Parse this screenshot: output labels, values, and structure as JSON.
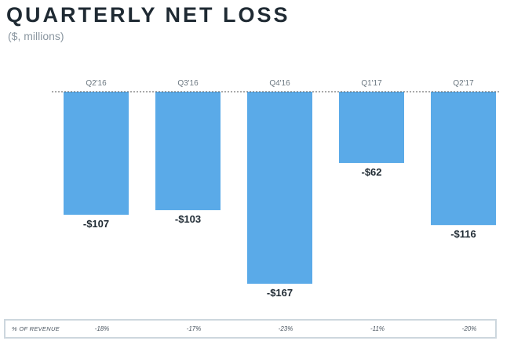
{
  "header": {
    "title": "QUARTERLY NET LOSS",
    "subtitle": "($, millions)"
  },
  "colors": {
    "bar": "#5aaae8",
    "text": "#1f2a33",
    "baseline": "#555555",
    "footer_border": "#cdd7de"
  },
  "chart_data": {
    "type": "bar",
    "title": "QUARTERLY NET LOSS",
    "subtitle": "($, millions)",
    "categories": [
      "Q2'16",
      "Q3'16",
      "Q4'16",
      "Q1'17",
      "Q2'17"
    ],
    "values": [
      -107,
      -103,
      -167,
      -62,
      -116
    ],
    "data_labels": [
      "-$107",
      "-$103",
      "-$167",
      "-$62",
      "-$116"
    ],
    "xlabel": "",
    "ylabel": "",
    "ylim": [
      -167,
      0
    ],
    "category_axis_position": "top",
    "grid": false,
    "legend": "none"
  },
  "footer": {
    "label": "% OF REVENUE",
    "values": [
      "-18%",
      "-17%",
      "-23%",
      "-11%",
      "-20%"
    ]
  }
}
